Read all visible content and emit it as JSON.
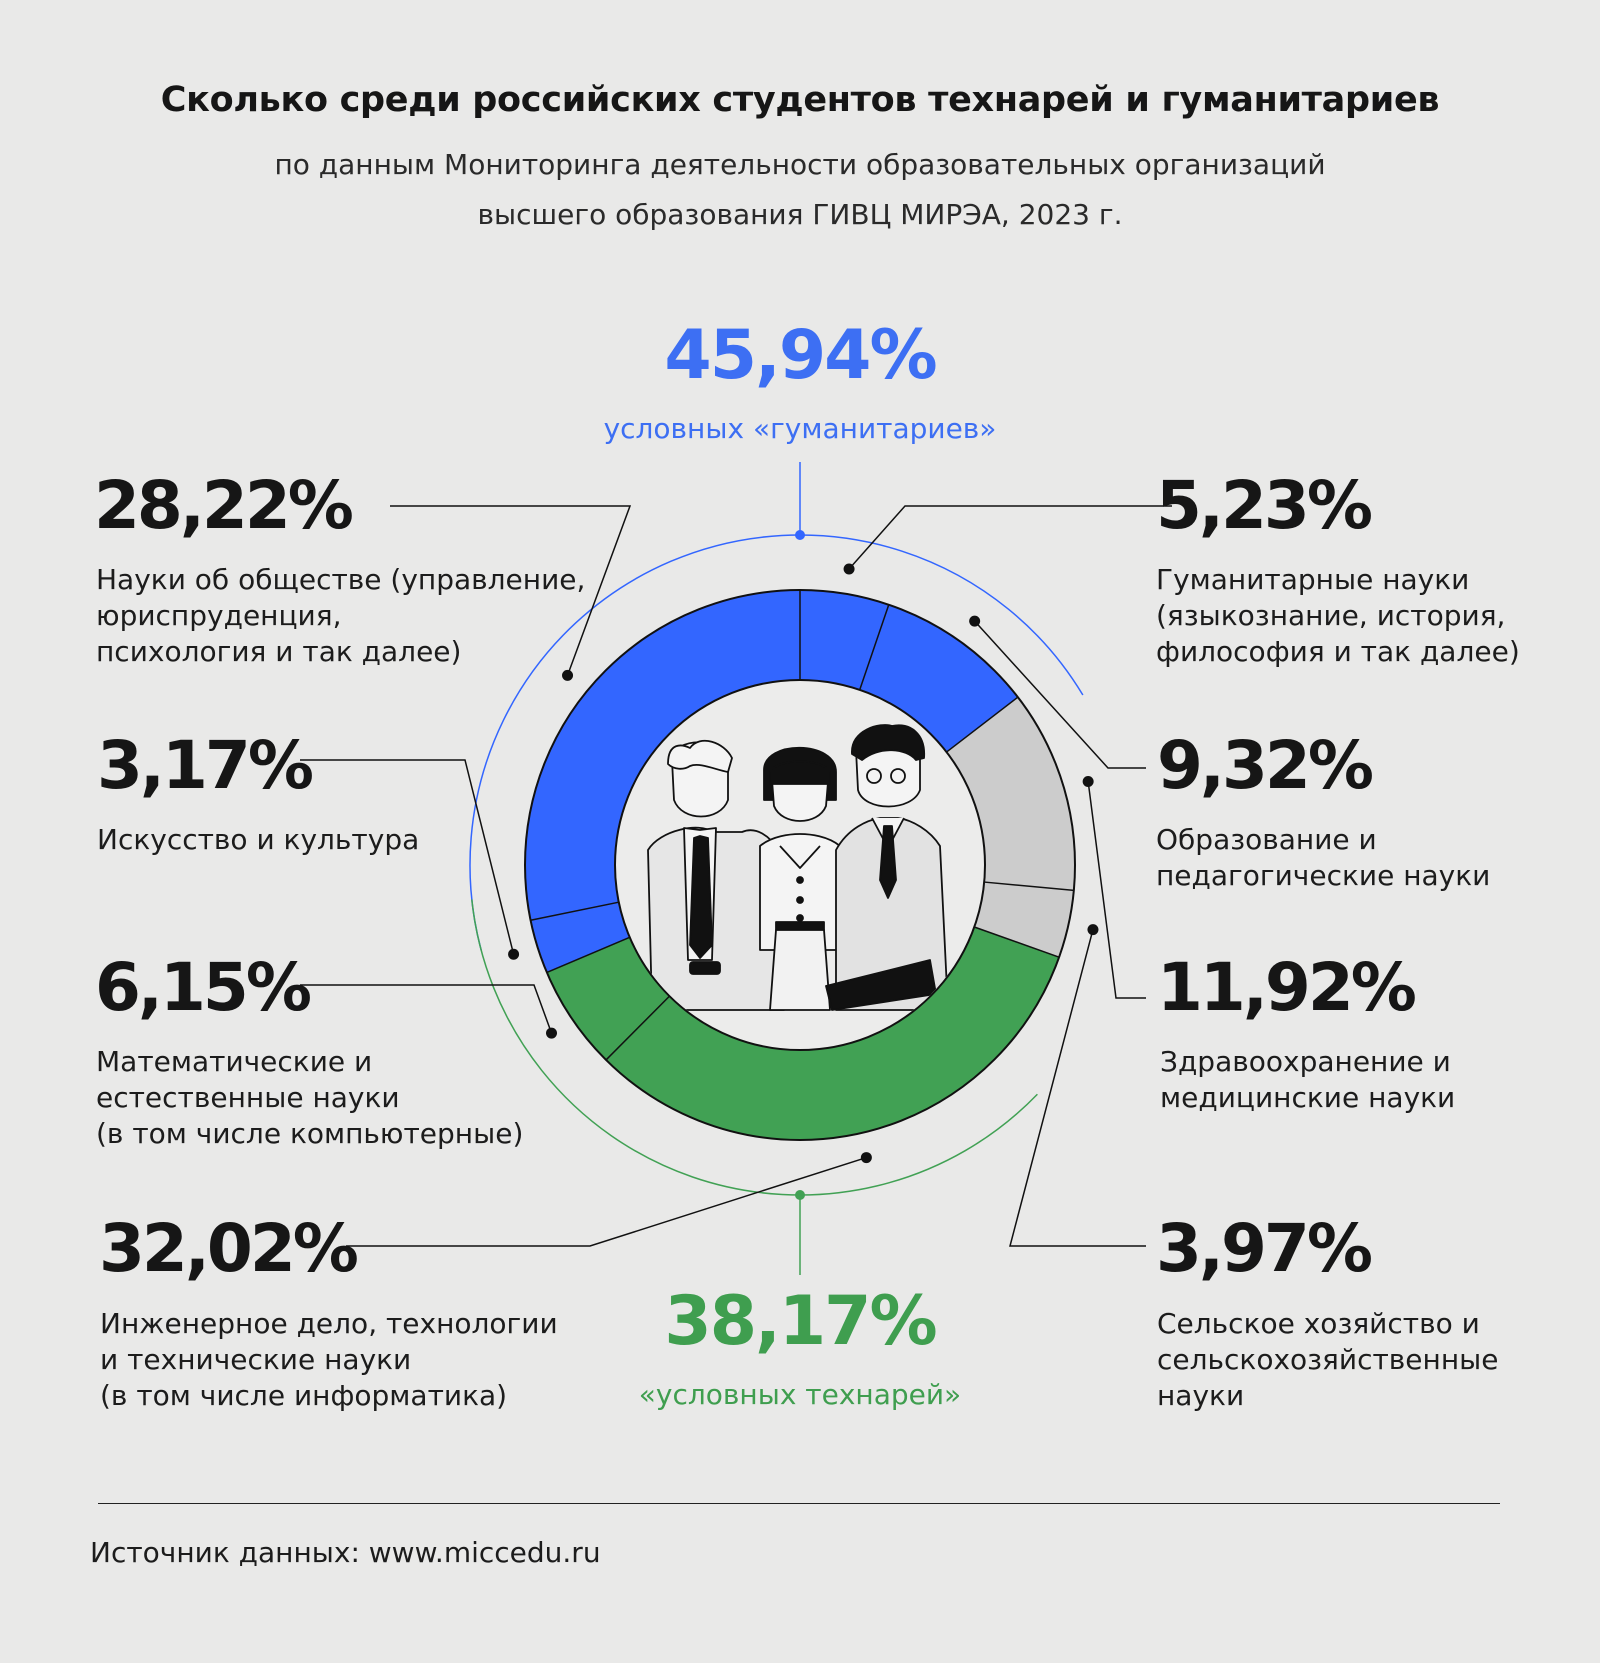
{
  "title": "Сколько среди российских студентов технарей и гуманитариев",
  "subtitle_line1": "по данным Мониторинга деятельности образовательных организаций",
  "subtitle_line2": "высшего образования ГИВЦ МИРЭА, 2023 г.",
  "source": "Источник данных: www.miccedu.ru",
  "colors": {
    "humanities": "#3366ff",
    "tech": "#41a154",
    "other": "#cccccc",
    "humanities_text": "#3d6ff3",
    "tech_text": "#3f9e4f"
  },
  "groups": {
    "humanities": {
      "value": "45,94%",
      "label": "условных «гуманитариев»"
    },
    "tech": {
      "value": "38,17%",
      "label": "«условных технарей»"
    }
  },
  "categories": [
    {
      "value": "28,22%",
      "label_lines": [
        "Науки об обществе (управление,",
        "юриспруденция,",
        "психология и так далее)"
      ]
    },
    {
      "value": "5,23%",
      "label_lines": [
        "Гуманитарные науки",
        "(языкознание, история,",
        "философия и так далее)"
      ]
    },
    {
      "value": "3,17%",
      "label_lines": [
        "Искусство и культура"
      ]
    },
    {
      "value": "9,32%",
      "label_lines": [
        "Образование и",
        "педагогические науки"
      ]
    },
    {
      "value": "6,15%",
      "label_lines": [
        "Математические и",
        "естественные науки",
        "(в том числе компьютерные)"
      ]
    },
    {
      "value": "11,92%",
      "label_lines": [
        "Здравоохранение и",
        "медицинские науки"
      ]
    },
    {
      "value": "32,02%",
      "label_lines": [
        "Инженерное дело, технологии",
        "и технические науки",
        "(в том числе информатика)"
      ]
    },
    {
      "value": "3,97%",
      "label_lines": [
        "Сельское хозяйство и",
        "сельскохозяйственные",
        "науки"
      ]
    }
  ],
  "chart_data": {
    "type": "pie",
    "title": "Сколько среди российских студентов технарей и гуманитариев",
    "unit": "%",
    "slices": [
      {
        "name": "Гуманитарные науки",
        "value": 5.23,
        "group": "humanities"
      },
      {
        "name": "Образование и педагогические науки",
        "value": 9.32,
        "group": "humanities"
      },
      {
        "name": "Здравоохранение и медицинские науки",
        "value": 11.92,
        "group": "other"
      },
      {
        "name": "Сельское хозяйство и сельскохозяйственные науки",
        "value": 3.97,
        "group": "other"
      },
      {
        "name": "Инженерное дело, технологии и технические науки",
        "value": 32.02,
        "group": "tech"
      },
      {
        "name": "Математические и естественные науки",
        "value": 6.15,
        "group": "tech"
      },
      {
        "name": "Искусство и культура",
        "value": 3.17,
        "group": "humanities"
      },
      {
        "name": "Науки об обществе",
        "value": 28.22,
        "group": "humanities"
      }
    ],
    "group_totals": {
      "humanities": 45.94,
      "tech": 38.17
    }
  }
}
